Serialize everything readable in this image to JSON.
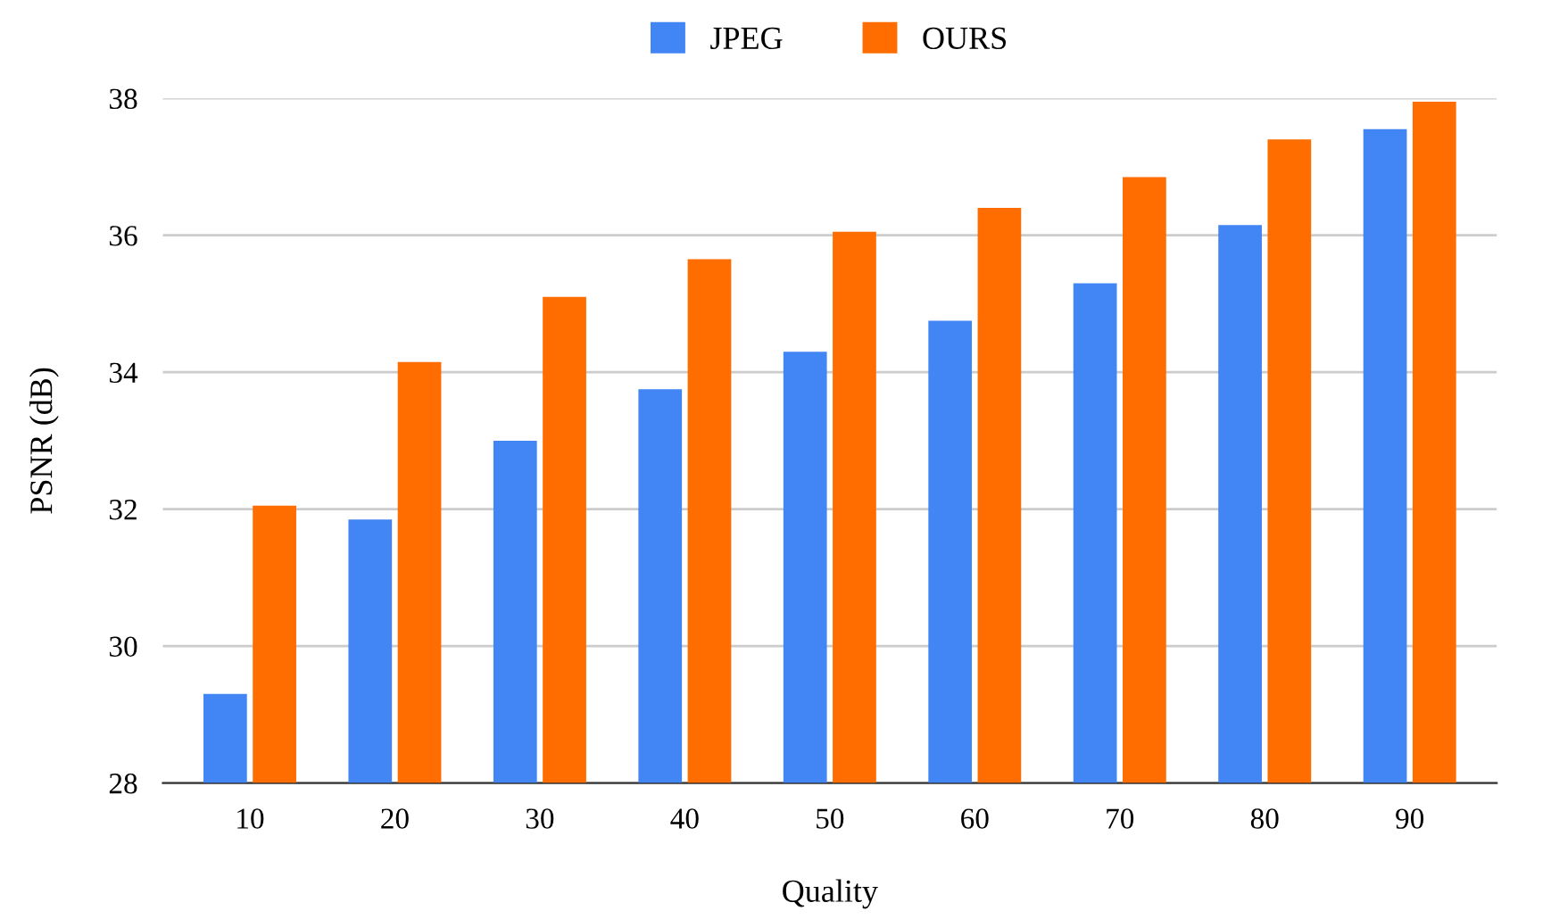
{
  "chart_data": {
    "type": "bar",
    "xlabel": "Quality",
    "ylabel": "PSNR (dB)",
    "categories": [
      "10",
      "20",
      "30",
      "40",
      "50",
      "60",
      "70",
      "80",
      "90"
    ],
    "series": [
      {
        "name": "JPEG",
        "color": "#4285f4",
        "values": [
          29.3,
          31.85,
          33.0,
          33.75,
          34.3,
          34.75,
          35.3,
          36.15,
          37.55
        ]
      },
      {
        "name": "OURS",
        "color": "#ff6d01",
        "values": [
          32.05,
          34.15,
          35.1,
          35.65,
          36.05,
          36.4,
          36.85,
          37.4,
          37.95
        ]
      }
    ],
    "ylim": [
      28,
      38
    ],
    "yticks": [
      28,
      30,
      32,
      34,
      36,
      38
    ],
    "grid": "y",
    "legend": "top"
  }
}
